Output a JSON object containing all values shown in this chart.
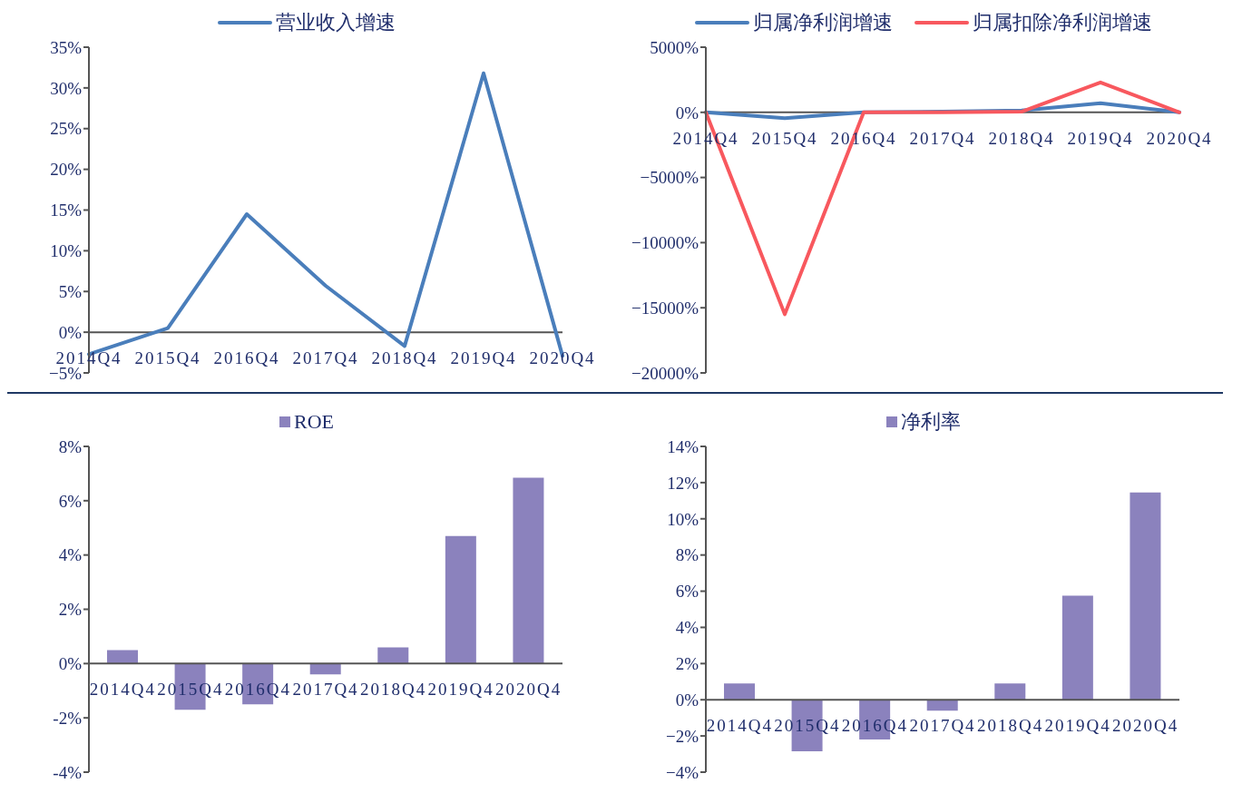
{
  "chart_data": [
    {
      "type": "line",
      "categories": [
        "2014Q4",
        "2015Q4",
        "2016Q4",
        "2017Q4",
        "2018Q4",
        "2019Q4",
        "2020Q4"
      ],
      "series": [
        {
          "name": "营业收入增速",
          "color": "#4a7ebb",
          "values": [
            -2.7,
            0.5,
            14.5,
            5.7,
            -1.7,
            31.8,
            -2.9
          ]
        }
      ],
      "ylim": [
        -5,
        35
      ],
      "yticks": [
        {
          "value": -5,
          "label": "−5%"
        },
        {
          "value": 0,
          "label": "0%"
        },
        {
          "value": 5,
          "label": "5%"
        },
        {
          "value": 10,
          "label": "10%"
        },
        {
          "value": 15,
          "label": "15%"
        },
        {
          "value": 20,
          "label": "20%"
        },
        {
          "value": 25,
          "label": "25%"
        },
        {
          "value": 30,
          "label": "30%"
        },
        {
          "value": 35,
          "label": "35%"
        }
      ],
      "legend": "top",
      "marker": "none",
      "line_style": "solid"
    },
    {
      "type": "line",
      "categories": [
        "2014Q4",
        "2015Q4",
        "2016Q4",
        "2017Q4",
        "2018Q4",
        "2019Q4",
        "2020Q4"
      ],
      "series": [
        {
          "name": "归属净利润增速",
          "color": "#4a7ebb",
          "values": [
            0,
            -450,
            0,
            50,
            150,
            700,
            0
          ]
        },
        {
          "name": "归属扣除净利润增速",
          "color": "#f8585e",
          "values": [
            0,
            -15500,
            0,
            0,
            50,
            2300,
            0
          ]
        }
      ],
      "ylim": [
        -20000,
        5000
      ],
      "yticks": [
        {
          "value": -20000,
          "label": "−20000%"
        },
        {
          "value": -15000,
          "label": "−15000%"
        },
        {
          "value": -10000,
          "label": "−10000%"
        },
        {
          "value": -5000,
          "label": "−5000%"
        },
        {
          "value": 0,
          "label": "0%"
        },
        {
          "value": 5000,
          "label": "5000%"
        }
      ],
      "legend": "top",
      "marker": "none",
      "line_style": "solid"
    },
    {
      "type": "bar",
      "categories": [
        "2014Q4",
        "2015Q4",
        "2016Q4",
        "2017Q4",
        "2018Q4",
        "2019Q4",
        "2020Q4"
      ],
      "series": [
        {
          "name": "ROE",
          "color": "#8b82bd",
          "values": [
            0.5,
            -1.7,
            -1.5,
            -0.4,
            0.6,
            4.7,
            6.85
          ]
        }
      ],
      "ylim": [
        -4,
        8
      ],
      "yticks": [
        {
          "value": -4,
          "label": "-4%"
        },
        {
          "value": -2,
          "label": "-2%"
        },
        {
          "value": 0,
          "label": "0%"
        },
        {
          "value": 2,
          "label": "2%"
        },
        {
          "value": 4,
          "label": "4%"
        },
        {
          "value": 6,
          "label": "6%"
        },
        {
          "value": 8,
          "label": "8%"
        }
      ],
      "legend": "top"
    },
    {
      "type": "bar",
      "categories": [
        "2014Q4",
        "2015Q4",
        "2016Q4",
        "2017Q4",
        "2018Q4",
        "2019Q4",
        "2020Q4"
      ],
      "series": [
        {
          "name": "净利率",
          "color": "#8b82bd",
          "values": [
            0.9,
            -2.85,
            -2.2,
            -0.6,
            0.9,
            5.75,
            11.45
          ]
        }
      ],
      "ylim": [
        -4,
        14
      ],
      "yticks": [
        {
          "value": -4,
          "label": "−4%"
        },
        {
          "value": -2,
          "label": "−2%"
        },
        {
          "value": 0,
          "label": "0%"
        },
        {
          "value": 2,
          "label": "2%"
        },
        {
          "value": 4,
          "label": "4%"
        },
        {
          "value": 6,
          "label": "6%"
        },
        {
          "value": 8,
          "label": "8%"
        },
        {
          "value": 10,
          "label": "10%"
        },
        {
          "value": 12,
          "label": "12%"
        },
        {
          "value": 14,
          "label": "14%"
        }
      ],
      "legend": "top"
    }
  ]
}
